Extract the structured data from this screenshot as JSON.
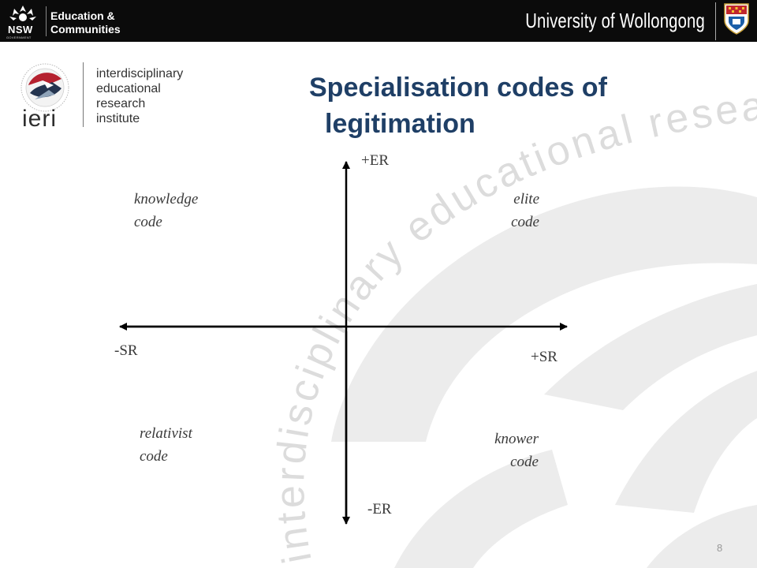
{
  "header": {
    "nsw_logo_text": "NSW",
    "nsw_government": "GOVERNMENT",
    "department_line1": "Education &",
    "department_line2": "Communities",
    "university": "University of Wollongong"
  },
  "institute": {
    "abbreviation": "ieri",
    "name_lines": [
      "interdisciplinary",
      "educational",
      "research",
      "institute"
    ]
  },
  "watermark_text": "interdisciplinary educational research institute",
  "slide": {
    "title_line1": "Specialisation codes of",
    "title_line2": "legitimation",
    "page_number": "8"
  },
  "diagram": {
    "axis_labels": {
      "top": "+ER",
      "bottom": "-ER",
      "left": "-SR",
      "right": "+SR"
    },
    "quadrants": {
      "top_left": [
        "knowledge",
        "code"
      ],
      "top_right": [
        "elite",
        "code"
      ],
      "bottom_left": [
        "relativist",
        "code"
      ],
      "bottom_right": [
        "knower",
        "code"
      ]
    }
  },
  "colors": {
    "banner": "#0b0b0b",
    "title": "#1f3f66",
    "watermark": "#e4e4e4",
    "ieri_red": "#b5212f",
    "ieri_navy": "#24344f"
  }
}
